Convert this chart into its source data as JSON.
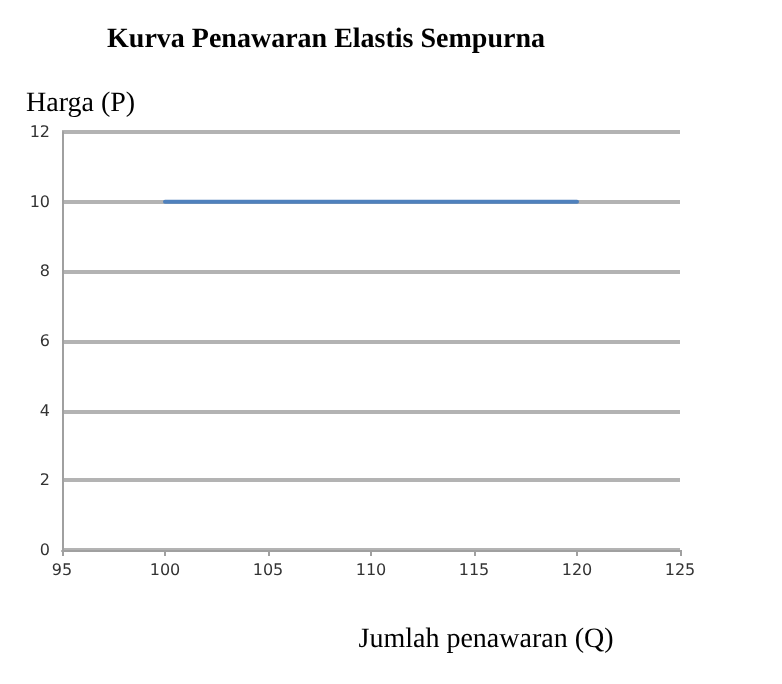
{
  "chart_data": {
    "type": "line",
    "title": "Kurva Penawaran Elastis Sempurna",
    "xlabel": "Jumlah penawaran (Q)",
    "ylabel": "Harga (P)",
    "x": [
      100,
      120
    ],
    "series": [
      {
        "color": "#4f81bd",
        "values": [
          10,
          10
        ]
      }
    ],
    "xlim": [
      95,
      125
    ],
    "xticks": [
      95,
      100,
      105,
      110,
      115,
      120,
      125
    ],
    "ylim": [
      0,
      12
    ],
    "yticks": [
      0,
      2,
      4,
      6,
      8,
      10,
      12
    ],
    "grid": "y",
    "marker": "none",
    "line_style": "solid"
  }
}
